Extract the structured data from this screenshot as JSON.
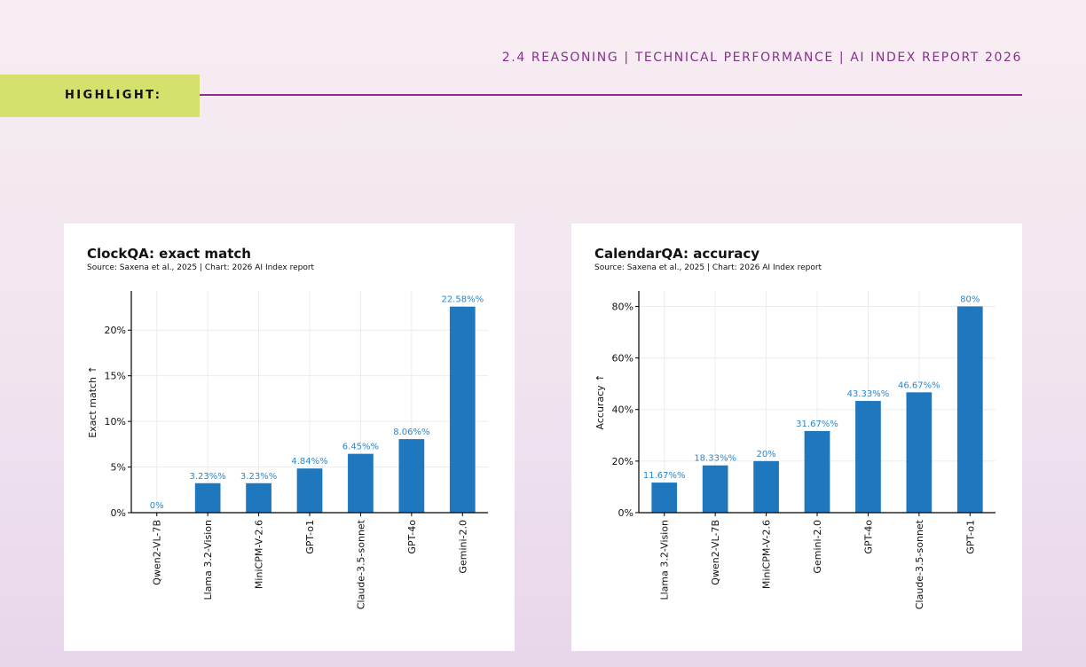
{
  "header": {
    "breadcrumb": "2.4 REASONING  |  TECHNICAL PERFORMANCE  |  AI INDEX REPORT 2026"
  },
  "highlight": {
    "label": "HIGHLIGHT:"
  },
  "colors": {
    "bar": "#1f77bd",
    "label": "#2b86c9",
    "accent": "#8a2f90",
    "highlight_bg": "#d4e26d"
  },
  "chart_data": [
    {
      "type": "bar",
      "title": "ClockQA: exact match",
      "subtitle": "Source: Saxena et al., 2025 | Chart: 2026 AI Index report",
      "ylabel": "Exact match ↑",
      "xlabel": "",
      "categories": [
        "Qwen2-VL-7B",
        "Llama 3.2-Vision",
        "MiniCPM-V-2.6",
        "GPT-o1",
        "Claude-3.5-sonnet",
        "GPT-4o",
        "Gemini-2.0"
      ],
      "values": [
        0,
        3.23,
        3.23,
        4.84,
        6.45,
        8.06,
        22.58
      ],
      "data_labels": [
        "0%",
        "3.23%%",
        "3.23%%",
        "4.84%%",
        "6.45%%",
        "8.06%%",
        "22.58%%"
      ],
      "yticks": [
        0,
        5,
        10,
        15,
        20
      ],
      "ytick_labels": [
        "0%",
        "5%",
        "10%",
        "15%",
        "20%"
      ],
      "ylim": [
        0,
        24.3
      ],
      "grid": true,
      "legend": "none"
    },
    {
      "type": "bar",
      "title": "CalendarQA: accuracy",
      "subtitle": "Source: Saxena et al., 2025 | Chart: 2026 AI Index report",
      "ylabel": "Accuracy ↑",
      "xlabel": "",
      "categories": [
        "Llama 3.2-Vision",
        "Qwen2-VL-7B",
        "MiniCPM-V-2.6",
        "Gemini-2.0",
        "GPT-4o",
        "Claude-3.5-sonnet",
        "GPT-o1"
      ],
      "values": [
        11.67,
        18.33,
        20,
        31.67,
        43.33,
        46.67,
        80
      ],
      "data_labels": [
        "11.67%%",
        "18.33%%",
        "20%",
        "31.67%%",
        "43.33%%",
        "46.67%%",
        "80%"
      ],
      "yticks": [
        0,
        20,
        40,
        60,
        80
      ],
      "ytick_labels": [
        "0%",
        "20%",
        "40%",
        "60%",
        "80%"
      ],
      "ylim": [
        0,
        86
      ],
      "grid": true,
      "legend": "none"
    }
  ]
}
